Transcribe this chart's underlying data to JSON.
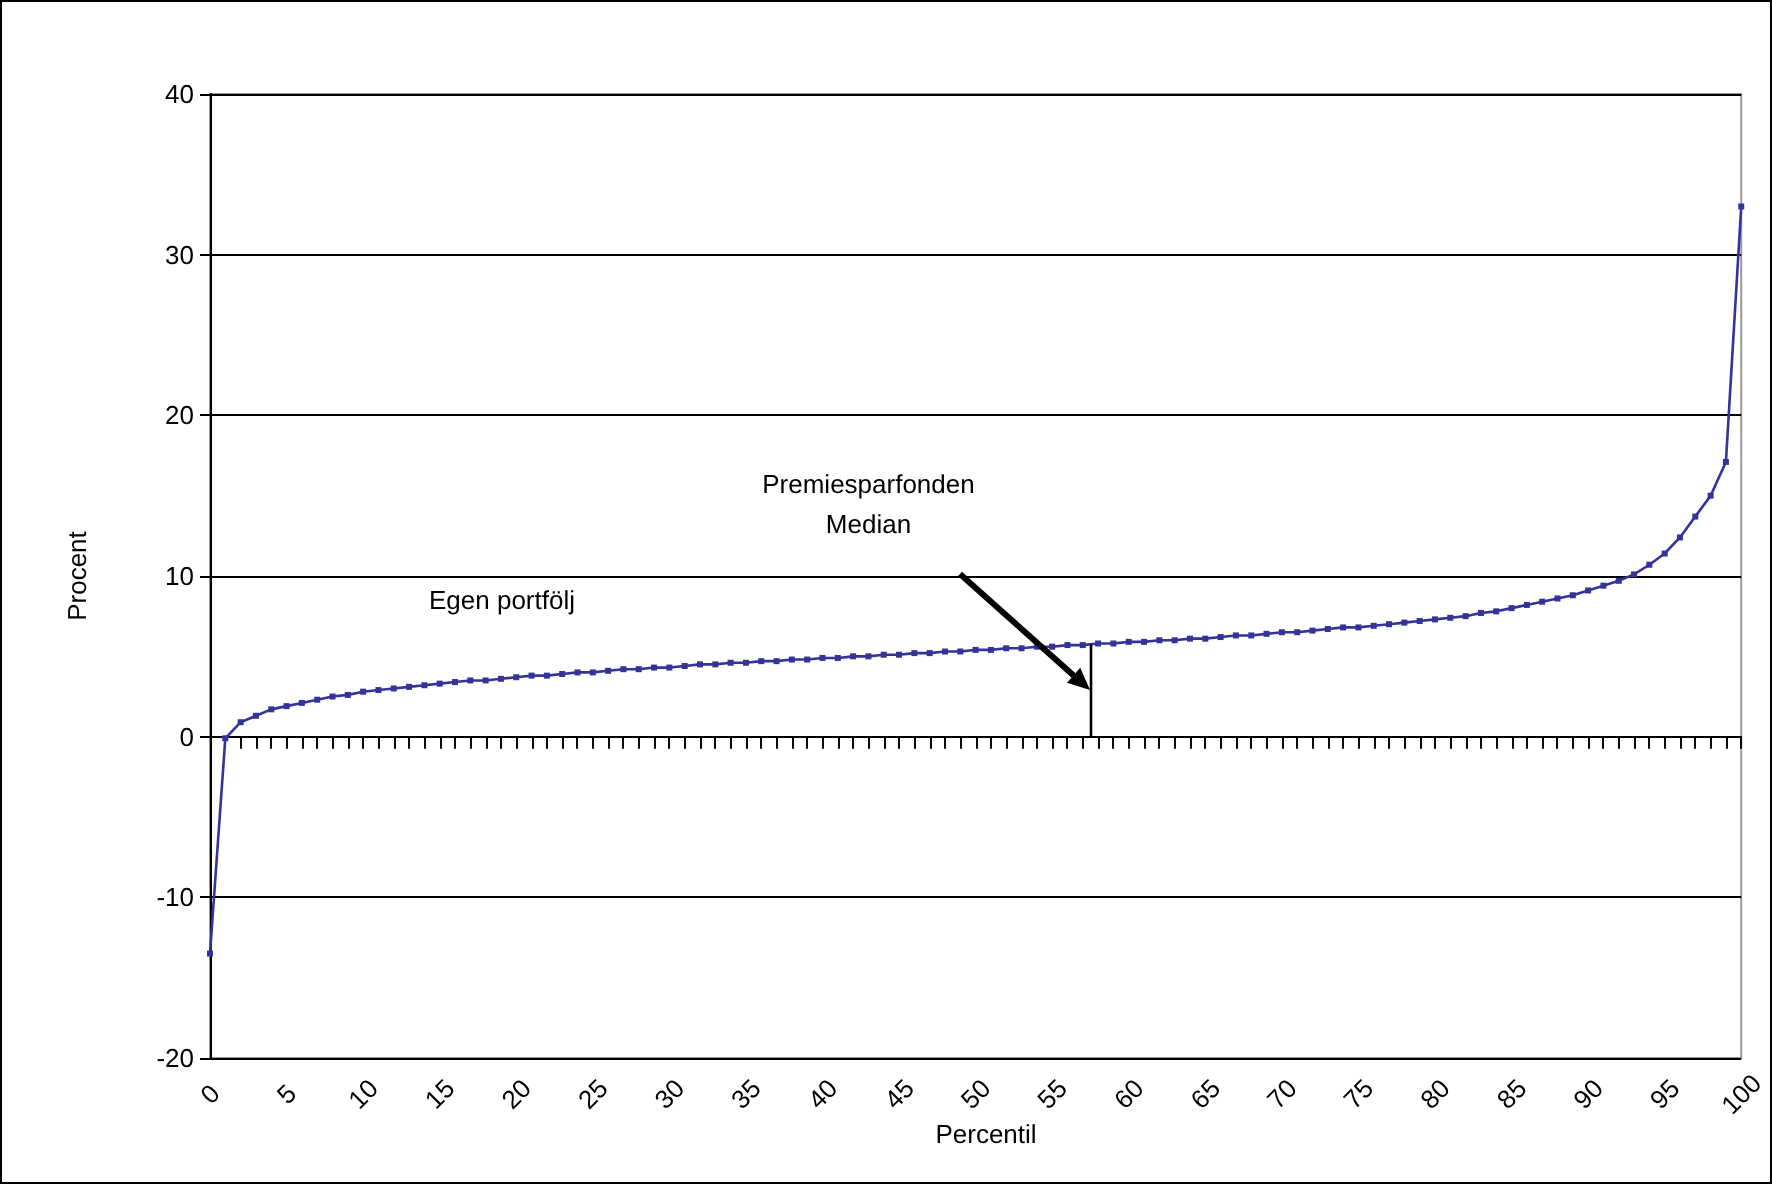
{
  "chart_data": {
    "type": "line",
    "xlabel": "Percentil",
    "ylabel": "Procent",
    "x": [
      0,
      1,
      2,
      3,
      4,
      5,
      6,
      7,
      8,
      9,
      10,
      11,
      12,
      13,
      14,
      15,
      16,
      17,
      18,
      19,
      20,
      21,
      22,
      23,
      24,
      25,
      26,
      27,
      28,
      29,
      30,
      31,
      32,
      33,
      34,
      35,
      36,
      37,
      38,
      39,
      40,
      41,
      42,
      43,
      44,
      45,
      46,
      47,
      48,
      49,
      50,
      51,
      52,
      53,
      54,
      55,
      56,
      57,
      58,
      59,
      60,
      61,
      62,
      63,
      64,
      65,
      66,
      67,
      68,
      69,
      70,
      71,
      72,
      73,
      74,
      75,
      76,
      77,
      78,
      79,
      80,
      81,
      82,
      83,
      84,
      85,
      86,
      87,
      88,
      89,
      90,
      91,
      92,
      93,
      94,
      95,
      96,
      97,
      98,
      99,
      100
    ],
    "series": [
      {
        "color": "#333399",
        "values": [
          -13.5,
          -0.1,
          0.9,
          1.3,
          1.7,
          1.9,
          2.1,
          2.3,
          2.5,
          2.6,
          2.8,
          2.9,
          3.0,
          3.1,
          3.2,
          3.3,
          3.4,
          3.5,
          3.5,
          3.6,
          3.7,
          3.8,
          3.8,
          3.9,
          4.0,
          4.0,
          4.1,
          4.2,
          4.2,
          4.3,
          4.3,
          4.4,
          4.5,
          4.5,
          4.6,
          4.6,
          4.7,
          4.7,
          4.8,
          4.8,
          4.9,
          4.9,
          5.0,
          5.0,
          5.1,
          5.1,
          5.2,
          5.2,
          5.3,
          5.3,
          5.4,
          5.4,
          5.5,
          5.5,
          5.6,
          5.6,
          5.7,
          5.7,
          5.8,
          5.8,
          5.9,
          5.9,
          6.0,
          6.0,
          6.1,
          6.1,
          6.2,
          6.3,
          6.3,
          6.4,
          6.5,
          6.5,
          6.6,
          6.7,
          6.8,
          6.8,
          6.9,
          7.0,
          7.1,
          7.2,
          7.3,
          7.4,
          7.5,
          7.7,
          7.8,
          8.0,
          8.2,
          8.4,
          8.6,
          8.8,
          9.1,
          9.4,
          9.7,
          10.1,
          10.7,
          11.4,
          12.4,
          13.7,
          15.0,
          17.1,
          33
        ]
      }
    ],
    "xlim": [
      0,
      100
    ],
    "xticks": [
      0,
      {
        "value": 1,
        "label": null
      },
      {
        "value": 2,
        "label": null
      },
      {
        "value": 3,
        "label": null
      },
      {
        "value": 4,
        "label": null
      },
      5,
      {
        "value": 6,
        "label": null
      },
      {
        "value": 7,
        "label": null
      },
      {
        "value": 8,
        "label": null
      },
      {
        "value": 9,
        "label": null
      },
      10,
      {
        "value": 11,
        "label": null
      },
      {
        "value": 12,
        "label": null
      },
      {
        "value": 13,
        "label": null
      },
      {
        "value": 14,
        "label": null
      },
      15,
      {
        "value": 16,
        "label": null
      },
      {
        "value": 17,
        "label": null
      },
      {
        "value": 18,
        "label": null
      },
      {
        "value": 19,
        "label": null
      },
      20,
      {
        "value": 21,
        "label": null
      },
      {
        "value": 22,
        "label": null
      },
      {
        "value": 23,
        "label": null
      },
      {
        "value": 24,
        "label": null
      },
      25,
      {
        "value": 26,
        "label": null
      },
      {
        "value": 27,
        "label": null
      },
      {
        "value": 28,
        "label": null
      },
      {
        "value": 29,
        "label": null
      },
      30,
      {
        "value": 31,
        "label": null
      },
      {
        "value": 32,
        "label": null
      },
      {
        "value": 33,
        "label": null
      },
      {
        "value": 34,
        "label": null
      },
      35,
      {
        "value": 36,
        "label": null
      },
      {
        "value": 37,
        "label": null
      },
      {
        "value": 38,
        "label": null
      },
      {
        "value": 39,
        "label": null
      },
      40,
      {
        "value": 41,
        "label": null
      },
      {
        "value": 42,
        "label": null
      },
      {
        "value": 43,
        "label": null
      },
      {
        "value": 44,
        "label": null
      },
      45,
      {
        "value": 46,
        "label": null
      },
      {
        "value": 47,
        "label": null
      },
      {
        "value": 48,
        "label": null
      },
      {
        "value": 49,
        "label": null
      },
      50,
      {
        "value": 51,
        "label": null
      },
      {
        "value": 52,
        "label": null
      },
      {
        "value": 53,
        "label": null
      },
      {
        "value": 54,
        "label": null
      },
      55,
      {
        "value": 56,
        "label": null
      },
      {
        "value": 57,
        "label": null
      },
      {
        "value": 58,
        "label": null
      },
      {
        "value": 59,
        "label": null
      },
      60,
      {
        "value": 61,
        "label": null
      },
      {
        "value": 62,
        "label": null
      },
      {
        "value": 63,
        "label": null
      },
      {
        "value": 64,
        "label": null
      },
      65,
      {
        "value": 66,
        "label": null
      },
      {
        "value": 67,
        "label": null
      },
      {
        "value": 68,
        "label": null
      },
      {
        "value": 69,
        "label": null
      },
      70,
      {
        "value": 71,
        "label": null
      },
      {
        "value": 72,
        "label": null
      },
      {
        "value": 73,
        "label": null
      },
      {
        "value": 74,
        "label": null
      },
      75,
      {
        "value": 76,
        "label": null
      },
      {
        "value": 77,
        "label": null
      },
      {
        "value": 78,
        "label": null
      },
      {
        "value": 79,
        "label": null
      },
      80,
      {
        "value": 81,
        "label": null
      },
      {
        "value": 82,
        "label": null
      },
      {
        "value": 83,
        "label": null
      },
      {
        "value": 84,
        "label": null
      },
      85,
      {
        "value": 86,
        "label": null
      },
      {
        "value": 87,
        "label": null
      },
      {
        "value": 88,
        "label": null
      },
      {
        "value": 89,
        "label": null
      },
      90,
      {
        "value": 91,
        "label": null
      },
      {
        "value": 92,
        "label": null
      },
      {
        "value": 93,
        "label": null
      },
      {
        "value": 94,
        "label": null
      },
      95,
      {
        "value": 96,
        "label": null
      },
      {
        "value": 97,
        "label": null
      },
      {
        "value": 98,
        "label": null
      },
      {
        "value": 99,
        "label": null
      },
      100
    ],
    "ylim": [
      -20,
      40
    ],
    "yticks": [
      -20,
      -10,
      0,
      10,
      20,
      30,
      40
    ],
    "grid": "y",
    "marker": "square",
    "line_style": "solid",
    "ref_lines": [
      {
        "axis": "x",
        "value": 57.5,
        "label": "Premiesparfonden\nMedian",
        "color": "#000000"
      }
    ],
    "annotations": [
      "Egen portfölj"
    ]
  }
}
